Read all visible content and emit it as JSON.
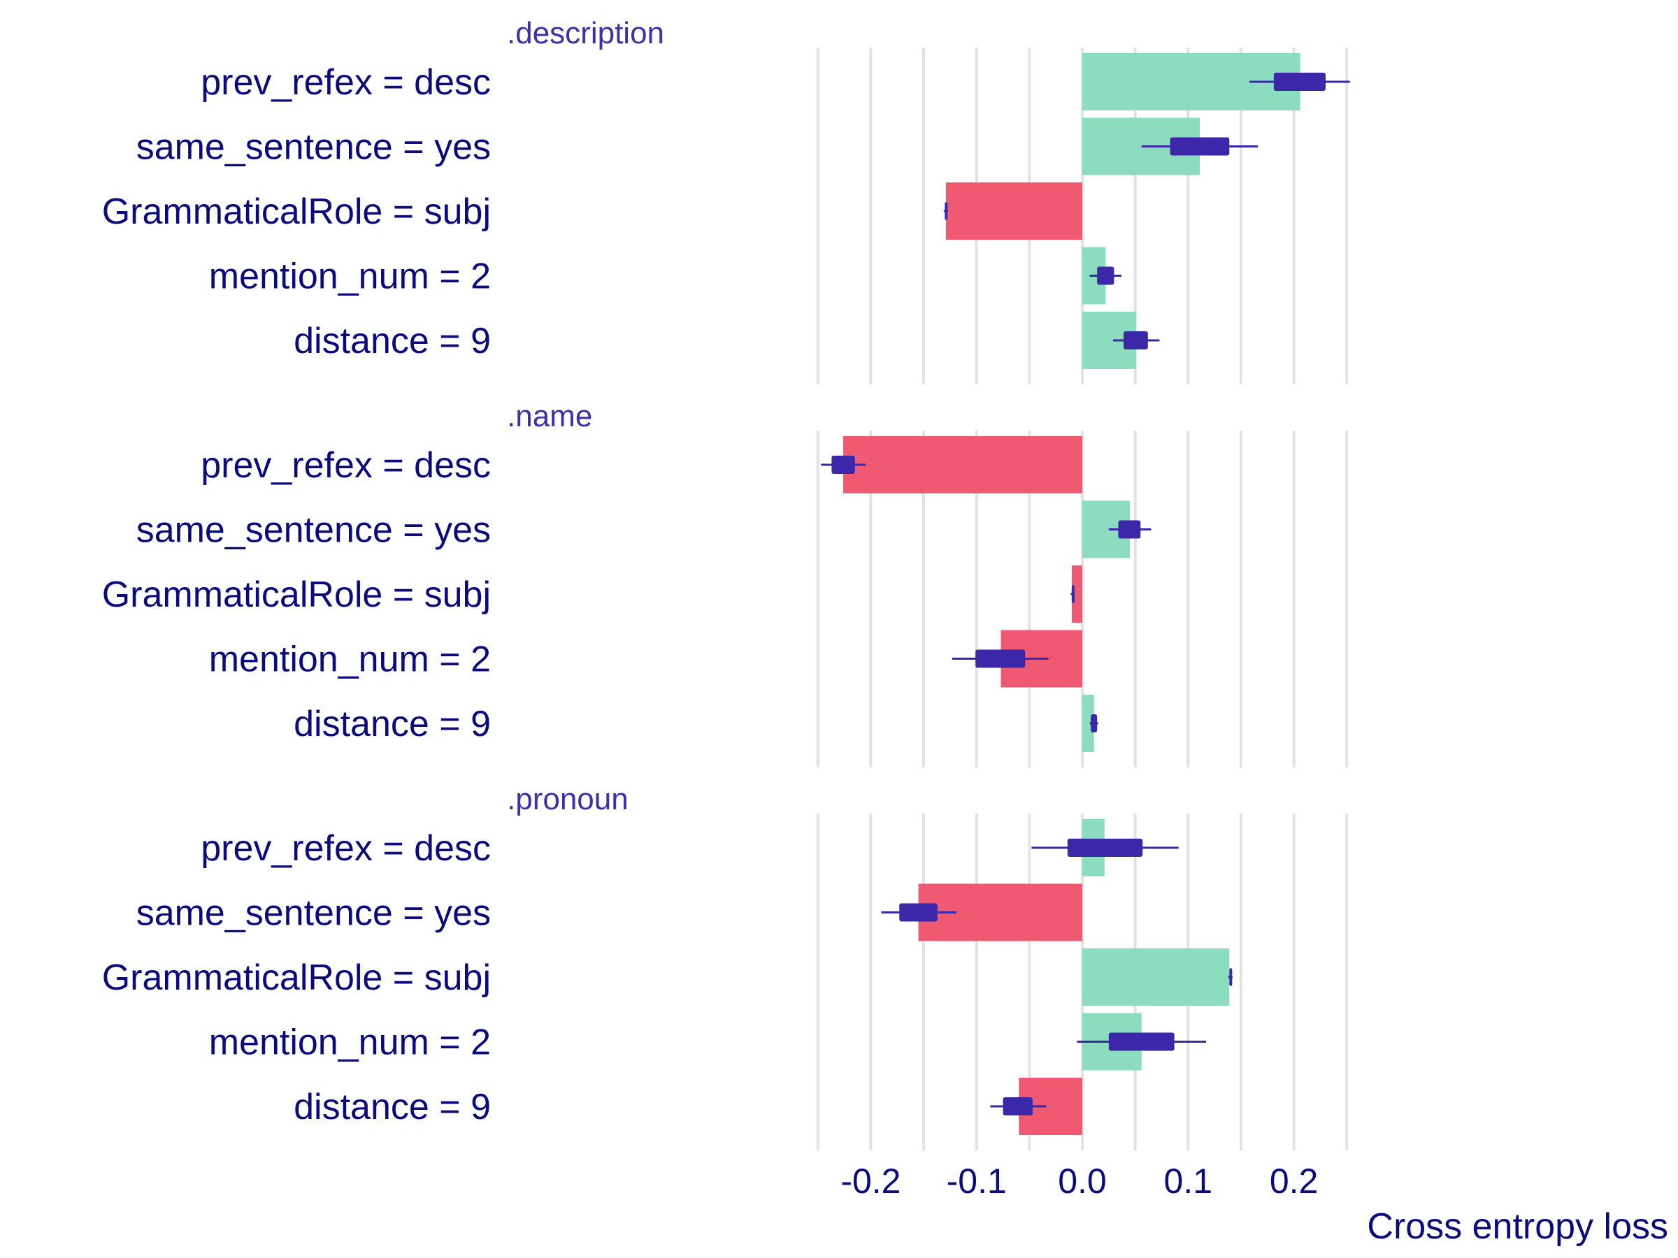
{
  "chart_data": {
    "type": "bar",
    "xlabel": "Cross entropy loss",
    "xlim": [
      -0.25,
      0.26
    ],
    "xticks": [
      -0.2,
      -0.1,
      0.0,
      0.1,
      0.2
    ],
    "xtick_labels": [
      "-0.2",
      "-0.1",
      "0.0",
      "0.1",
      "0.2"
    ],
    "grid": true,
    "colors": {
      "positive": "#8cddc0",
      "negative": "#ef5a72",
      "boxplot": "#3b27a8",
      "label": "#0b0b7d",
      "panel_title": "#3f2fa8",
      "grid": "#e2e2e2"
    },
    "categories": [
      "prev_refex = desc",
      "same_sentence = yes",
      "GrammaticalRole = subj",
      "mention_num = 2",
      "distance = 9"
    ],
    "panels": [
      {
        "title": ".description",
        "values": [
          0.206,
          0.111,
          -0.129,
          0.022,
          0.051
        ],
        "boxplots": [
          {
            "min": 0.158,
            "q1": 0.181,
            "q3": 0.23,
            "max": 0.253
          },
          {
            "min": 0.056,
            "q1": 0.083,
            "q3": 0.139,
            "max": 0.166
          },
          {
            "min": -0.131,
            "q1": -0.13,
            "q3": -0.128,
            "max": -0.127
          },
          {
            "min": 0.007,
            "q1": 0.014,
            "q3": 0.03,
            "max": 0.037
          },
          {
            "min": 0.029,
            "q1": 0.039,
            "q3": 0.062,
            "max": 0.073
          }
        ]
      },
      {
        "title": ".name",
        "values": [
          -0.226,
          0.045,
          -0.01,
          -0.077,
          0.011
        ],
        "boxplots": [
          {
            "min": -0.247,
            "q1": -0.237,
            "q3": -0.215,
            "max": -0.205
          },
          {
            "min": 0.025,
            "q1": 0.034,
            "q3": 0.055,
            "max": 0.065
          },
          {
            "min": -0.011,
            "q1": -0.01,
            "q3": -0.009,
            "max": -0.008
          },
          {
            "min": -0.123,
            "q1": -0.101,
            "q3": -0.054,
            "max": -0.032
          },
          {
            "min": 0.007,
            "q1": 0.008,
            "q3": 0.014,
            "max": 0.015
          }
        ]
      },
      {
        "title": ".pronoun",
        "values": [
          0.021,
          -0.155,
          0.139,
          0.056,
          -0.06
        ],
        "boxplots": [
          {
            "min": -0.048,
            "q1": -0.014,
            "q3": 0.057,
            "max": 0.091
          },
          {
            "min": -0.19,
            "q1": -0.173,
            "q3": -0.137,
            "max": -0.119
          },
          {
            "min": 0.138,
            "q1": 0.139,
            "q3": 0.141,
            "max": 0.142
          },
          {
            "min": -0.005,
            "q1": 0.025,
            "q3": 0.087,
            "max": 0.117
          },
          {
            "min": -0.087,
            "q1": -0.075,
            "q3": -0.047,
            "max": -0.034
          }
        ]
      }
    ]
  }
}
